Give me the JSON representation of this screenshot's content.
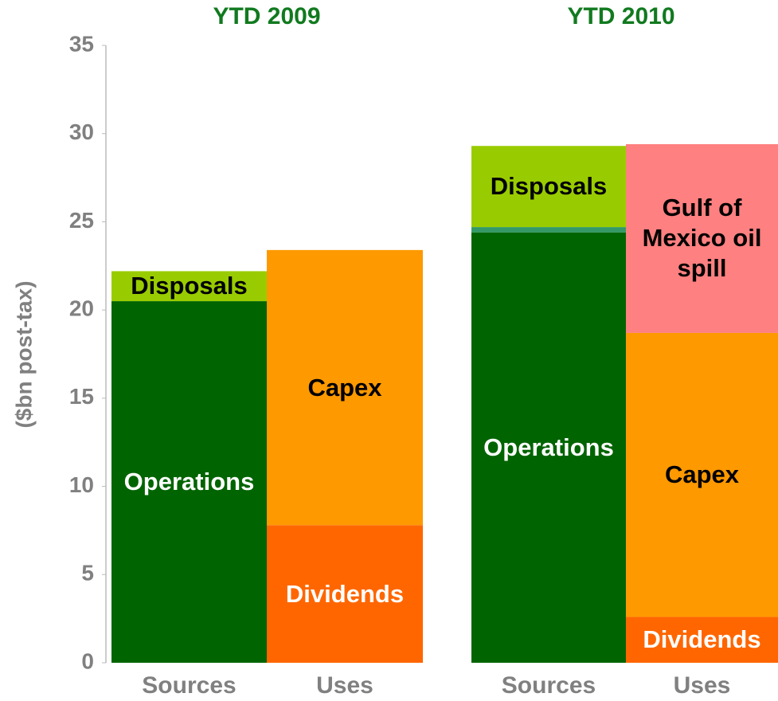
{
  "chart_data": {
    "type": "bar",
    "stacked": true,
    "y_label": "($bn post-tax)",
    "ylim": [
      0,
      35
    ],
    "yticks": [
      0,
      5,
      10,
      15,
      20,
      25,
      30,
      35
    ],
    "groups": [
      {
        "title": "YTD 2009",
        "categories": [
          "Sources",
          "Uses"
        ]
      },
      {
        "title": "YTD 2010",
        "categories": [
          "Sources",
          "Uses"
        ]
      }
    ],
    "series": [
      {
        "name": "Operations",
        "color": "#006400",
        "label_color": "#ffffff",
        "values": [
          20.5,
          null,
          24.4,
          null
        ]
      },
      {
        "name": null,
        "color": "#339966",
        "values": [
          null,
          null,
          0.3,
          null
        ]
      },
      {
        "name": "Disposals",
        "color": "#99cc00",
        "label_color": "#000000",
        "values": [
          1.7,
          null,
          4.6,
          null
        ]
      },
      {
        "name": "Dividends",
        "color": "#ff6600",
        "label_color": "#ffffff",
        "values": [
          null,
          7.8,
          null,
          2.6
        ]
      },
      {
        "name": "Capex",
        "color": "#ff9900",
        "label_color": "#000000",
        "values": [
          null,
          15.6,
          null,
          16.1
        ]
      },
      {
        "name": "Gulf of Mexico oil spill",
        "color": "#ff8080",
        "label_color": "#000000",
        "values": [
          null,
          null,
          null,
          10.7
        ]
      }
    ]
  }
}
